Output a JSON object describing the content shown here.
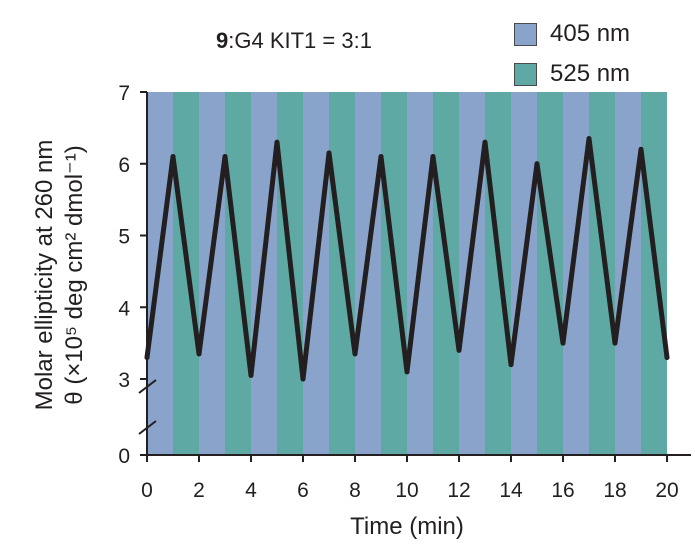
{
  "title": {
    "bold": "9",
    "rest": ":G4 KIT1 = 3:1"
  },
  "legend": [
    {
      "label": "405 nm",
      "color": "#8aa3cb"
    },
    {
      "label": "525 nm",
      "color": "#5fa9a4"
    }
  ],
  "colors": {
    "line": "#231f20",
    "axis": "#231f20"
  },
  "chart_data": {
    "type": "line",
    "title": "9:G4 KIT1 = 3:1",
    "xlabel": "Time (min)",
    "ylabel_line1": "Molar ellipticity at 260 nm",
    "ylabel_line2": "θ (×10⁵ deg cm² dmol⁻¹)",
    "xlim": [
      0,
      20
    ],
    "ylim": [
      0,
      7
    ],
    "axis_break": "between 0 and 3 on the y-axis",
    "x_ticks": [
      "0",
      "2",
      "4",
      "6",
      "8",
      "10",
      "12",
      "14",
      "16",
      "18",
      "20"
    ],
    "y_ticks": [
      "0",
      "3",
      "4",
      "5",
      "6",
      "7"
    ],
    "background_bands": [
      {
        "label": "405 nm",
        "intervals": [
          [
            0,
            1
          ],
          [
            2,
            3
          ],
          [
            4,
            5
          ],
          [
            6,
            7
          ],
          [
            8,
            9
          ],
          [
            10,
            11
          ],
          [
            12,
            13
          ],
          [
            14,
            15
          ],
          [
            16,
            17
          ],
          [
            18,
            19
          ]
        ]
      },
      {
        "label": "525 nm",
        "intervals": [
          [
            1,
            2
          ],
          [
            3,
            4
          ],
          [
            5,
            6
          ],
          [
            7,
            8
          ],
          [
            9,
            10
          ],
          [
            11,
            12
          ],
          [
            13,
            14
          ],
          [
            15,
            16
          ],
          [
            17,
            18
          ],
          [
            19,
            20
          ]
        ]
      }
    ],
    "series": [
      {
        "x": [
          0,
          1,
          2,
          3,
          4,
          5,
          6,
          7,
          8,
          9,
          10,
          11,
          12,
          13,
          14,
          15,
          16,
          17,
          18,
          19,
          20
        ],
        "y": [
          3.3,
          6.1,
          3.35,
          6.1,
          3.05,
          6.3,
          3.0,
          6.15,
          3.35,
          6.1,
          3.1,
          6.1,
          3.4,
          6.3,
          3.2,
          6.0,
          3.5,
          6.35,
          3.5,
          6.2,
          3.3
        ]
      }
    ]
  }
}
